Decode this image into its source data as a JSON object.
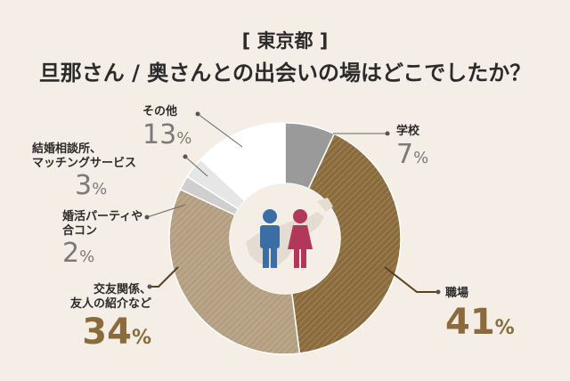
{
  "title_line1": "[ 東京都 ]",
  "title_line2": "旦那さん / 奥さんとの出会いの場はどこでしたか？",
  "colors": {
    "background": "#f4eee6",
    "school": "#9a9a9a",
    "workplace": "#8b6b3b",
    "friends": "#b39e80",
    "party": "#cfcfcf",
    "agency": "#e6e6e6",
    "other": "#ffffff",
    "man_icon": "#3a6ea5",
    "woman_icon": "#b2385a",
    "label_accent": "#8b6b3b"
  },
  "center_icons": [
    "man-icon",
    "woman-icon",
    "japan-map-icon"
  ],
  "chart_data": {
    "type": "pie",
    "categories": [
      "学校",
      "職場",
      "交友関係、友人の紹介など",
      "婚活パーティや合コン",
      "結婚相談所、マッチングサービス",
      "その他"
    ],
    "values": [
      7,
      41,
      34,
      2,
      3,
      13
    ],
    "unit": "%",
    "title": "旦那さん / 奥さんとの出会いの場はどこでしたか？",
    "subtitle": "[ 東京都 ]"
  },
  "labels": [
    {
      "name": "学校",
      "pct": "7",
      "unit": "%"
    },
    {
      "name": "職場",
      "pct": "41",
      "unit": "%"
    },
    {
      "name_line1": "交友関係、",
      "name_line2": "友人の紹介など",
      "pct": "34",
      "unit": "%"
    },
    {
      "name_line1": "婚活パーティや",
      "name_line2": "合コン",
      "pct": "2",
      "unit": "%"
    },
    {
      "name_line1": "結婚相談所、",
      "name_line2": "マッチングサービス",
      "pct": "3",
      "unit": "%"
    },
    {
      "name": "その他",
      "pct": "13",
      "unit": "%"
    }
  ]
}
